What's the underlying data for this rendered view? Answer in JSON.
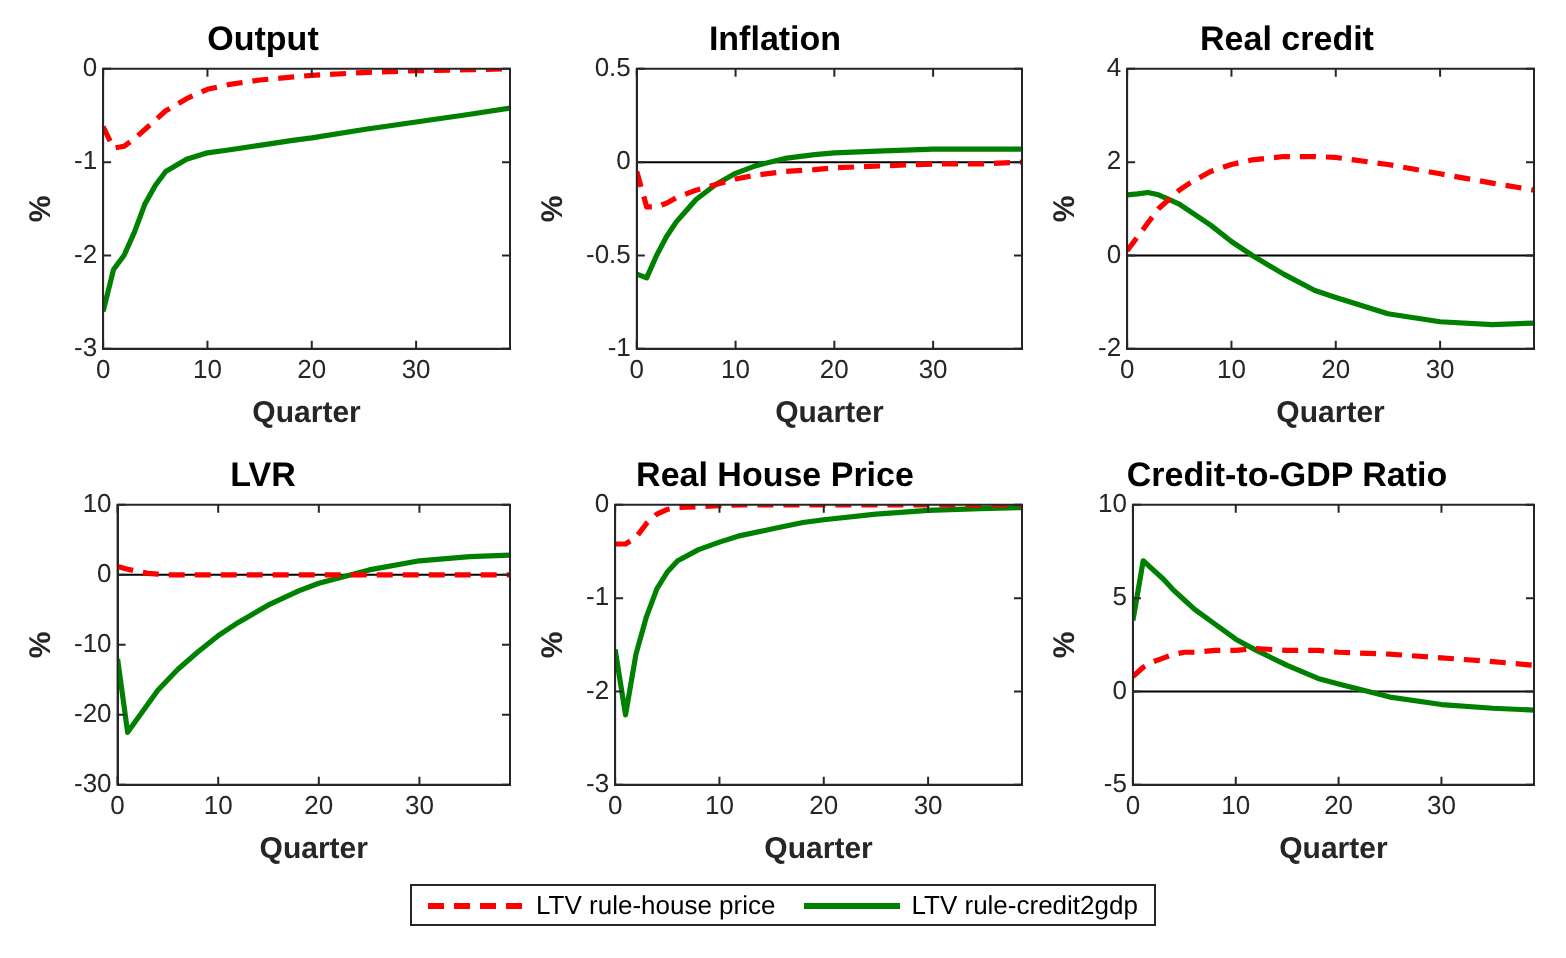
{
  "chart_data": [
    {
      "type": "line",
      "title": "Output",
      "xlabel": "Quarter",
      "ylabel": "%",
      "x": [
        0,
        1,
        2,
        3,
        4,
        5,
        6,
        8,
        10,
        12,
        15,
        18,
        20,
        25,
        30,
        35,
        39
      ],
      "xlim": [
        0,
        39
      ],
      "xticks": [
        0,
        10,
        20,
        30
      ],
      "ylim": [
        -3,
        0
      ],
      "yticks": [
        -3,
        -2,
        -1,
        0
      ],
      "marker": "none",
      "legend": "bottom",
      "series": [
        {
          "name": "LTV rule-house price",
          "color": "#ff0000",
          "line_style": "dashed",
          "values": [
            -0.62,
            -0.85,
            -0.83,
            -0.75,
            -0.65,
            -0.55,
            -0.45,
            -0.32,
            -0.22,
            -0.17,
            -0.12,
            -0.09,
            -0.07,
            -0.04,
            -0.02,
            -0.01,
            0
          ]
        },
        {
          "name": "LTV rule-credit2gdp",
          "color": "#008000",
          "line_style": "solid",
          "values": [
            -2.6,
            -2.15,
            -2.0,
            -1.75,
            -1.45,
            -1.25,
            -1.1,
            -0.97,
            -0.9,
            -0.87,
            -0.82,
            -0.77,
            -0.74,
            -0.65,
            -0.57,
            -0.49,
            -0.42
          ]
        }
      ]
    },
    {
      "type": "line",
      "title": "Inflation",
      "xlabel": "Quarter",
      "ylabel": "%",
      "x": [
        0,
        1,
        2,
        3,
        4,
        5,
        6,
        8,
        10,
        12,
        15,
        18,
        20,
        25,
        30,
        35,
        39
      ],
      "xlim": [
        0,
        39
      ],
      "xticks": [
        0,
        10,
        20,
        30
      ],
      "ylim": [
        -1,
        0.5
      ],
      "yticks": [
        -1,
        -0.5,
        0,
        0.5
      ],
      "marker": "none",
      "ref_lines": [
        {
          "axis": "y",
          "value": 0,
          "color": "#000000"
        }
      ],
      "series": [
        {
          "color": "#ff0000",
          "line_style": "dashed",
          "values": [
            -0.05,
            -0.24,
            -0.24,
            -0.22,
            -0.19,
            -0.17,
            -0.15,
            -0.12,
            -0.09,
            -0.07,
            -0.05,
            -0.04,
            -0.03,
            -0.02,
            -0.01,
            -0.01,
            0
          ]
        },
        {
          "color": "#008000",
          "line_style": "solid",
          "values": [
            -0.6,
            -0.62,
            -0.5,
            -0.4,
            -0.32,
            -0.26,
            -0.2,
            -0.12,
            -0.06,
            -0.02,
            0.02,
            0.04,
            0.05,
            0.06,
            0.07,
            0.07,
            0.07
          ]
        }
      ]
    },
    {
      "type": "line",
      "title": "Real credit",
      "xlabel": "Quarter",
      "ylabel": "%",
      "x": [
        0,
        1,
        2,
        3,
        4,
        5,
        6,
        8,
        10,
        12,
        15,
        18,
        20,
        25,
        30,
        35,
        39
      ],
      "xlim": [
        0,
        39
      ],
      "xticks": [
        0,
        10,
        20,
        30
      ],
      "ylim": [
        -2,
        4
      ],
      "yticks": [
        -2,
        0,
        2,
        4
      ],
      "marker": "none",
      "ref_lines": [
        {
          "axis": "y",
          "value": 0,
          "color": "#000000"
        }
      ],
      "series": [
        {
          "color": "#ff0000",
          "line_style": "dashed",
          "values": [
            0.1,
            0.4,
            0.7,
            1.0,
            1.2,
            1.4,
            1.55,
            1.8,
            1.95,
            2.05,
            2.12,
            2.12,
            2.1,
            1.95,
            1.75,
            1.55,
            1.4
          ]
        },
        {
          "color": "#008000",
          "line_style": "solid",
          "values": [
            1.3,
            1.32,
            1.35,
            1.3,
            1.2,
            1.1,
            0.95,
            0.65,
            0.3,
            0,
            -0.4,
            -0.75,
            -0.9,
            -1.25,
            -1.42,
            -1.48,
            -1.45
          ]
        }
      ]
    },
    {
      "type": "line",
      "title": "LVR",
      "xlabel": "Quarter",
      "ylabel": "%",
      "x": [
        0,
        1,
        2,
        3,
        4,
        5,
        6,
        8,
        10,
        12,
        15,
        18,
        20,
        25,
        30,
        35,
        39
      ],
      "xlim": [
        0,
        39
      ],
      "xticks": [
        0,
        10,
        20,
        30
      ],
      "ylim": [
        -30,
        10
      ],
      "yticks": [
        -30,
        -20,
        -10,
        0,
        10
      ],
      "marker": "none",
      "ref_lines": [
        {
          "axis": "y",
          "value": 0,
          "color": "#000000"
        }
      ],
      "series": [
        {
          "color": "#ff0000",
          "line_style": "dashed",
          "values": [
            1.2,
            0.8,
            0.5,
            0.2,
            0.1,
            0,
            0,
            0,
            0,
            0,
            0,
            0,
            0,
            0,
            0,
            0,
            0
          ]
        },
        {
          "color": "#008000",
          "line_style": "solid",
          "values": [
            -12,
            -22.5,
            -20.5,
            -18.5,
            -16.5,
            -15,
            -13.5,
            -11,
            -8.7,
            -6.8,
            -4.3,
            -2.3,
            -1.2,
            0.7,
            2,
            2.6,
            2.8
          ]
        }
      ]
    },
    {
      "type": "line",
      "title": "Real House Price",
      "xlabel": "Quarter",
      "ylabel": "%",
      "x": [
        0,
        1,
        2,
        3,
        4,
        5,
        6,
        8,
        10,
        12,
        15,
        18,
        20,
        25,
        30,
        35,
        39
      ],
      "xlim": [
        0,
        39
      ],
      "xticks": [
        0,
        10,
        20,
        30
      ],
      "ylim": [
        -3,
        0
      ],
      "yticks": [
        -3,
        -2,
        -1,
        0
      ],
      "marker": "none",
      "series": [
        {
          "color": "#ff0000",
          "line_style": "dashed",
          "values": [
            -0.42,
            -0.42,
            -0.35,
            -0.2,
            -0.1,
            -0.05,
            -0.03,
            -0.02,
            -0.01,
            0,
            0,
            0,
            0,
            0,
            0,
            0,
            0
          ]
        },
        {
          "color": "#008000",
          "line_style": "solid",
          "values": [
            -1.55,
            -2.25,
            -1.6,
            -1.2,
            -0.9,
            -0.72,
            -0.6,
            -0.48,
            -0.4,
            -0.33,
            -0.26,
            -0.19,
            -0.16,
            -0.1,
            -0.06,
            -0.04,
            -0.03
          ]
        }
      ]
    },
    {
      "type": "line",
      "title": "Credit-to-GDP Ratio",
      "xlabel": "Quarter",
      "ylabel": "%",
      "x": [
        0,
        1,
        2,
        3,
        4,
        5,
        6,
        8,
        10,
        12,
        15,
        18,
        20,
        25,
        30,
        35,
        39
      ],
      "xlim": [
        0,
        39
      ],
      "xticks": [
        0,
        10,
        20,
        30
      ],
      "ylim": [
        -5,
        10
      ],
      "yticks": [
        -5,
        0,
        5,
        10
      ],
      "marker": "none",
      "ref_lines": [
        {
          "axis": "y",
          "value": 0,
          "color": "#000000"
        }
      ],
      "series": [
        {
          "color": "#ff0000",
          "line_style": "dashed",
          "values": [
            0.8,
            1.3,
            1.6,
            1.8,
            2.0,
            2.1,
            2.1,
            2.2,
            2.2,
            2.3,
            2.2,
            2.2,
            2.1,
            2.0,
            1.8,
            1.6,
            1.4
          ]
        },
        {
          "color": "#008000",
          "line_style": "solid",
          "values": [
            3.8,
            7,
            6.5,
            6,
            5.4,
            4.9,
            4.4,
            3.6,
            2.8,
            2.2,
            1.4,
            0.7,
            0.4,
            -0.3,
            -0.7,
            -0.9,
            -1
          ]
        }
      ]
    }
  ]
}
